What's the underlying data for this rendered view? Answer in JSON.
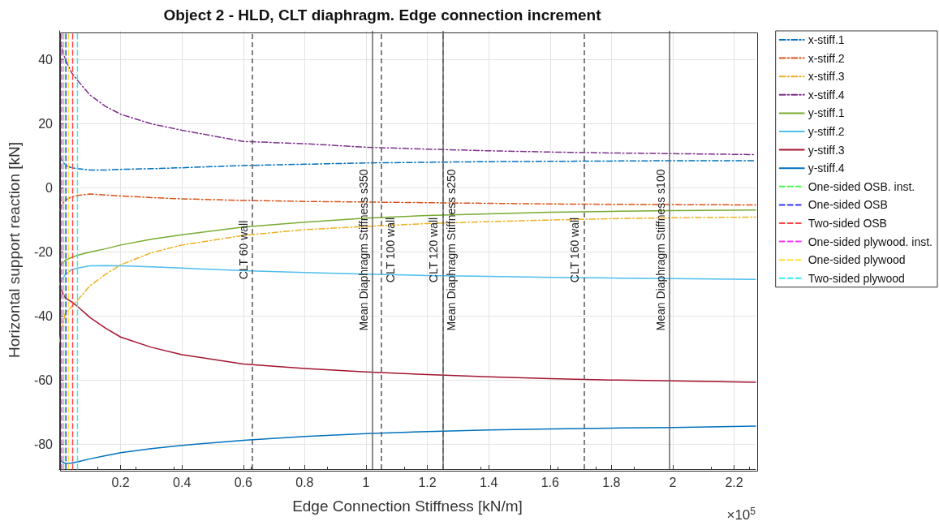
{
  "chart_data": {
    "type": "line",
    "title": "Object 2 - HLD, CLT diaphragm. Edge connection increment",
    "xlabel": "Edge Connection Stiffness [kN/m]",
    "ylabel": "Horizontal support reaction [kN]",
    "annotations": [
      "×10$^{5}$"
    ],
    "x": [
      0.001,
      0.01,
      0.02,
      0.04,
      0.06,
      0.1,
      0.15,
      0.2,
      0.3,
      0.4,
      0.6,
      0.8,
      1.0,
      1.2,
      1.4,
      1.6,
      1.8,
      2.0,
      2.27
    ],
    "series": [
      {
        "name": "x-stiff.1",
        "color": "#0072bd",
        "line_style": "dashdot",
        "values": [
          10,
          8.5,
          7,
          6.3,
          6,
          5.6,
          5.6,
          5.8,
          6,
          6.3,
          7,
          7.4,
          7.8,
          8.0,
          8.2,
          8.3,
          8.4,
          8.5,
          8.5
        ]
      },
      {
        "name": "x-stiff.2",
        "color": "#d95319",
        "line_style": "dashdot",
        "values": [
          -7,
          -5,
          -3.8,
          -2.8,
          -2.3,
          -1.9,
          -2.2,
          -2.5,
          -3,
          -3.4,
          -3.9,
          -4.2,
          -4.4,
          -4.6,
          -4.8,
          -5,
          -5.1,
          -5.2,
          -5.3
        ]
      },
      {
        "name": "x-stiff.3",
        "color": "#edb120",
        "line_style": "dashdot",
        "values": [
          -48,
          -43,
          -39,
          -37,
          -35,
          -30.5,
          -27,
          -24,
          -20.2,
          -17.8,
          -14.8,
          -13,
          -12,
          -11.1,
          -10.5,
          -10,
          -9.6,
          -9.3,
          -9.1
        ]
      },
      {
        "name": "x-stiff.4",
        "color": "#7e2f8e",
        "line_style": "dashdot",
        "values": [
          47,
          43,
          40,
          36,
          33.5,
          29,
          25.5,
          23,
          20,
          18,
          14.5,
          13.8,
          12.7,
          12.1,
          11.6,
          11.2,
          10.9,
          10.7,
          10.4
        ]
      },
      {
        "name": "y-stiff.1",
        "color": "#77ac30",
        "line_style": "solid",
        "values": [
          -24.5,
          -23.5,
          -22.5,
          -21.7,
          -21,
          -20,
          -19,
          -17.8,
          -16,
          -14.6,
          -12.2,
          -10.7,
          -9.4,
          -8.6,
          -8.1,
          -7.6,
          -7.3,
          -7.1,
          -6.9
        ]
      },
      {
        "name": "y-stiff.2",
        "color": "#4dbeee",
        "line_style": "solid",
        "values": [
          -30,
          -28.5,
          -27,
          -25.5,
          -25,
          -24.3,
          -24.2,
          -24.3,
          -24.6,
          -25,
          -25.8,
          -26.4,
          -26.9,
          -27.3,
          -27.6,
          -27.9,
          -28.1,
          -28.3,
          -28.5
        ]
      },
      {
        "name": "y-stiff.3",
        "color": "#a2142f",
        "line_style": "solid",
        "values": [
          -31,
          -32.5,
          -34.3,
          -35.5,
          -37,
          -40.4,
          -43.7,
          -46.5,
          -49.7,
          -52,
          -54.9,
          -56.3,
          -57.4,
          -58.2,
          -58.9,
          -59.5,
          -59.9,
          -60.2,
          -60.6
        ]
      },
      {
        "name": "y-stiff.4",
        "color": "#0072bd",
        "line_style": "solid",
        "values": [
          -84.5,
          -85.5,
          -85.9,
          -85.8,
          -85.4,
          -84.5,
          -83.5,
          -82.6,
          -81.3,
          -80.3,
          -78.7,
          -77.5,
          -76.6,
          -76,
          -75.5,
          -75.2,
          -74.9,
          -74.7,
          -74.3
        ]
      },
      {
        "name": "One-sided OSB. inst.",
        "color": "#44ff44",
        "line_style": "dashed",
        "x": [
          0.0146,
          0.0146
        ],
        "values": [
          -87.7,
          49
        ]
      },
      {
        "name": "One-sided OSB",
        "color": "#3333ff",
        "line_style": "dashed",
        "x": [
          0.0217,
          0.0217
        ],
        "values": [
          -87.7,
          49
        ]
      },
      {
        "name": "Two-sided OSB",
        "color": "#ff4444",
        "line_style": "dashed",
        "x": [
          0.0437,
          0.0437
        ],
        "values": [
          -87.7,
          49
        ]
      },
      {
        "name": "One-sided plywood. inst.",
        "color": "#ff33ff",
        "line_style": "dashed",
        "x": [
          0.008,
          0.008
        ],
        "values": [
          -87.7,
          49
        ]
      },
      {
        "name": "One-sided plywood",
        "color": "#ffe033",
        "line_style": "dashed",
        "x": [
          0.0296,
          0.0296
        ],
        "values": [
          -87.7,
          49
        ]
      },
      {
        "name": "Two-sided plywood",
        "color": "#33eeee",
        "line_style": "dashed",
        "x": [
          0.0595,
          0.0595
        ],
        "values": [
          -87.7,
          49
        ]
      }
    ],
    "ref_lines": [
      {
        "axis": "x",
        "value": 0.626,
        "label": "CLT 60 wall",
        "color": "#555555",
        "line_style": "dashed"
      },
      {
        "axis": "x",
        "value": 1.02,
        "label": "Mean Diaphragm Stiffness s350",
        "color": "#666666",
        "line_style": "solid"
      },
      {
        "axis": "x",
        "value": 1.049,
        "label": "CLT 100 wall",
        "color": "#555555",
        "line_style": "dashed"
      },
      {
        "axis": "x",
        "value": 1.25,
        "label": "CLT 120 wall",
        "color": "#555555",
        "line_style": "dashed"
      },
      {
        "axis": "x",
        "value": 1.25,
        "label": "Mean Diaphragm Stiffness s250",
        "color": "#666666",
        "line_style": "solid"
      },
      {
        "axis": "x",
        "value": 1.705,
        "label": "CLT 160 wall",
        "color": "#555555",
        "line_style": "dashed"
      },
      {
        "axis": "x",
        "value": 1.99,
        "label": "Mean Diaphragm Stiffness s100",
        "color": "#666666",
        "line_style": "solid"
      }
    ],
    "xlim": [
      0,
      2.27
    ],
    "xticks": [
      0.2,
      0.4,
      0.6,
      0.8,
      1,
      1.2,
      1.4,
      1.6,
      1.8,
      2,
      2.2
    ],
    "ylim": [
      -87.7,
      49
    ],
    "yticks": [
      -80,
      -60,
      -40,
      -20,
      0,
      20,
      40
    ],
    "grid": true,
    "legend": "right",
    "marker": "none"
  }
}
